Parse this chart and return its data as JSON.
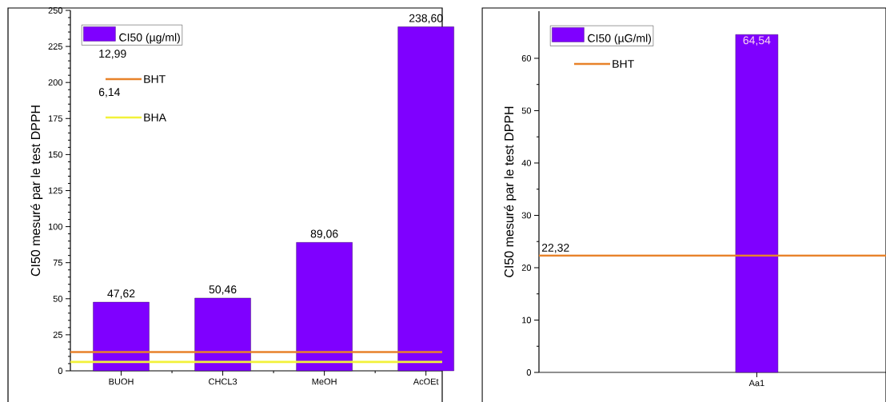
{
  "chart_data": [
    {
      "type": "bar",
      "ylabel": "CI50 mesuré par le test DPPH",
      "categories": [
        "BUOH",
        "CHCL3",
        "MeOH",
        "AcOEt"
      ],
      "series": [
        {
          "name": "CI50 (µg/ml)",
          "color": "#7f00ff",
          "values": [
            47.62,
            50.46,
            89.06,
            238.6
          ],
          "value_labels": [
            "47,62",
            "50,46",
            "89,06",
            "238,60"
          ]
        }
      ],
      "ylim": [
        0,
        250
      ],
      "yticks": [
        0,
        25,
        50,
        75,
        100,
        125,
        150,
        175,
        200,
        225,
        250
      ],
      "ref_lines": [
        {
          "axis": "y",
          "value": 12.99,
          "label": "BHT",
          "color": "#e8822a"
        },
        {
          "axis": "y",
          "value": 6.14,
          "label": "BHA",
          "color": "#f2f23a"
        }
      ],
      "annotations": [
        "12,99",
        "6,14"
      ],
      "legend": "top left"
    },
    {
      "type": "bar",
      "ylabel": "CI50 mesuré par le test DPPH",
      "categories": [
        "Aa1"
      ],
      "series": [
        {
          "name": "CI50 (µG/ml)",
          "color": "#7f00ff",
          "values": [
            64.54
          ],
          "value_labels": [
            "64,54"
          ]
        }
      ],
      "ylim": [
        0,
        69
      ],
      "yticks": [
        0,
        10,
        20,
        30,
        40,
        50,
        60
      ],
      "ref_lines": [
        {
          "axis": "y",
          "value": 22.32,
          "label": "BHT",
          "color": "#e8822a"
        }
      ],
      "annotations": [
        {
          "text": "22,32",
          "y": 22.32
        }
      ],
      "legend": "top left"
    }
  ]
}
